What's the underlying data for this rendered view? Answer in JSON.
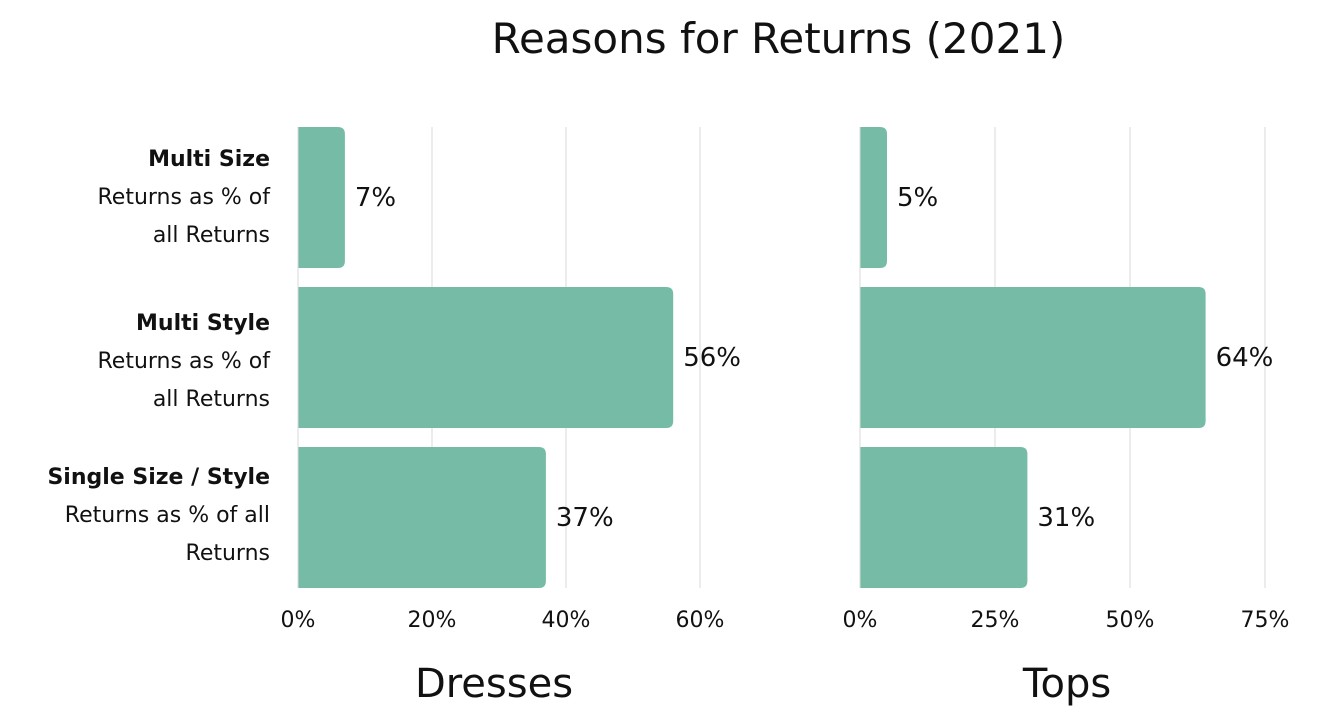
{
  "chart_data": {
    "type": "bar",
    "orientation": "horizontal",
    "title": "Reasons for Returns (2021)",
    "categories": [
      {
        "name": "Multi Size",
        "desc_lines": [
          "Returns as % of",
          "all Returns"
        ]
      },
      {
        "name": "Multi Style",
        "desc_lines": [
          "Returns as % of",
          "all Returns"
        ]
      },
      {
        "name": "Single Size / Style",
        "desc_lines": [
          "Returns as % of all",
          "Returns"
        ]
      }
    ],
    "panels": [
      {
        "xlabel": "Dresses",
        "values": [
          7,
          56,
          37
        ],
        "value_labels": [
          "7%",
          "56%",
          "37%"
        ],
        "xlim": [
          0,
          70
        ],
        "ticks": [
          0,
          20,
          40,
          60
        ],
        "tick_labels": [
          "0%",
          "20%",
          "40%",
          "60%"
        ]
      },
      {
        "xlabel": "Tops",
        "values": [
          5,
          64,
          31
        ],
        "value_labels": [
          "5%",
          "64%",
          "31%"
        ],
        "xlim": [
          0,
          80
        ],
        "ticks": [
          0,
          25,
          50,
          75
        ],
        "tick_labels": [
          "0%",
          "25%",
          "50%",
          "75%"
        ]
      }
    ],
    "grid": true,
    "colors": {
      "bar": "#76bba6",
      "grid": "#d9d9d9",
      "text": "#111111"
    }
  }
}
